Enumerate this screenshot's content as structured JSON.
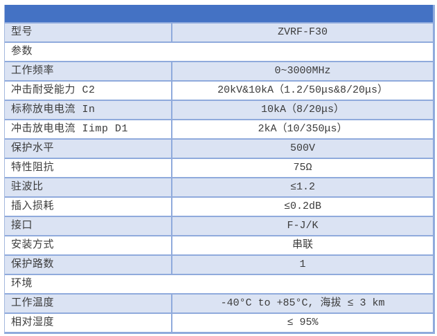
{
  "colors": {
    "header_blue": "#4472C4",
    "row_shade": "#DBE3F3",
    "row_white": "#FFFFFF",
    "border_blue": "#8FAADC",
    "text": "#3B3B3B"
  },
  "table": {
    "title_bar_text": "",
    "rows": [
      {
        "type": "pair",
        "shaded": true,
        "label": "型号",
        "value": "ZVRF-F30"
      },
      {
        "type": "section",
        "shaded": false,
        "label": "参数"
      },
      {
        "type": "pair",
        "shaded": true,
        "label": "工作频率",
        "value": "0~3000MHz"
      },
      {
        "type": "pair",
        "shaded": false,
        "label": "冲击耐受能力 C2",
        "value": "20kV&10kA（1.2/50μs&8/20μs）"
      },
      {
        "type": "pair",
        "shaded": true,
        "label": "标称放电电流 In",
        "value": "10kA（8/20μs）"
      },
      {
        "type": "pair",
        "shaded": false,
        "label": "冲击放电电流 Iimp D1",
        "value": "2kA（10/350μs）"
      },
      {
        "type": "pair",
        "shaded": true,
        "label": "保护水平",
        "value": "500V"
      },
      {
        "type": "pair",
        "shaded": false,
        "label": "特性阻抗",
        "value": "75Ω"
      },
      {
        "type": "pair",
        "shaded": true,
        "label": "驻波比",
        "value": "≤1.2"
      },
      {
        "type": "pair",
        "shaded": false,
        "label": "插入损耗",
        "value": "≤0.2dB"
      },
      {
        "type": "pair",
        "shaded": true,
        "label": "接口",
        "value": "F-J/K"
      },
      {
        "type": "pair",
        "shaded": false,
        "label": "安装方式",
        "value": "串联"
      },
      {
        "type": "pair",
        "shaded": true,
        "label": "保护路数",
        "value": "1"
      },
      {
        "type": "section",
        "shaded": false,
        "label": "环境"
      },
      {
        "type": "pair",
        "shaded": true,
        "label": "工作温度",
        "value": "-40°C to +85°C, 海拔 ≤ 3 km"
      },
      {
        "type": "pair",
        "shaded": false,
        "label": "相对湿度",
        "value": "≤ 95%"
      }
    ]
  }
}
